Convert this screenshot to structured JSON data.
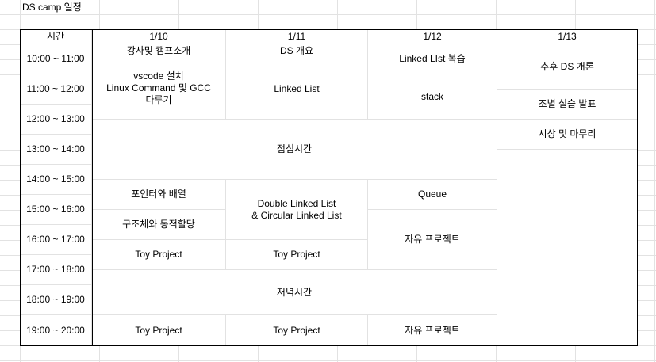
{
  "sheet_title": "DS camp 일정",
  "headers": {
    "time": "시간",
    "d1": "1/10",
    "d2": "1/11",
    "d3": "1/12",
    "d4": "1/13"
  },
  "times": [
    "10:00 ~ 11:00",
    "11:00 ~ 12:00",
    "12:00 ~ 13:00",
    "13:00 ~ 14:00",
    "14:00 ~ 15:00",
    "15:00 ~ 16:00",
    "16:00 ~ 17:00",
    "17:00 ~ 18:00",
    "18:00 ~ 19:00",
    "19:00 ~ 20:00"
  ],
  "day1": {
    "intro": "강사및 캠프소개",
    "setup": "vscode 설치\nLinux Command 및 GCC\n다루기",
    "pointer": "포인터와 배열",
    "struct": "구조체와 동적할당",
    "toy1": "Toy Project",
    "toy2": "Toy Project"
  },
  "day2": {
    "overview": "DS 개요",
    "linked": "Linked List",
    "double": "Double Linked List\n& Circular Linked List",
    "toy1": "Toy Project",
    "toy2": "Toy Project"
  },
  "day3": {
    "review": "Linked LIst 복습",
    "stack": "stack",
    "queue": "Queue",
    "free1": "자유 프로젝트",
    "free2": "자유 프로젝트"
  },
  "day4": {
    "future": "추후 DS 개론",
    "team": "조별 실습 발표",
    "award": "시상 및 마무리"
  },
  "shared": {
    "lunch": "점심시간",
    "dinner": "저녁시간"
  }
}
